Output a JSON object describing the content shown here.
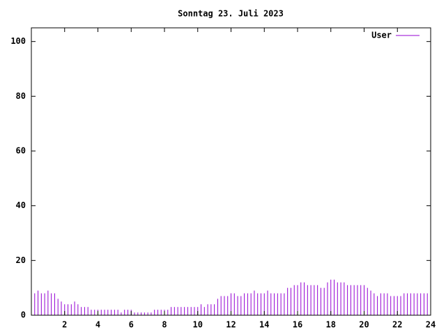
{
  "chart_data": {
    "type": "impulse",
    "title": "Sonntag 23. Juli 2023",
    "series": [
      {
        "name": "User",
        "color": "#9400d3",
        "x": [
          0,
          0.2,
          0.4,
          0.6,
          0.8,
          1,
          1.2,
          1.4,
          1.6,
          1.8,
          2,
          2.2,
          2.4,
          2.6,
          2.8,
          3,
          3.2,
          3.4,
          3.6,
          3.8,
          4,
          4.2,
          4.4,
          4.6,
          4.8,
          5,
          5.2,
          5.4,
          5.6,
          5.8,
          6,
          6.2,
          6.4,
          6.6,
          6.8,
          7,
          7.2,
          7.4,
          7.6,
          7.8,
          8,
          8.2,
          8.4,
          8.6,
          8.8,
          9,
          9.2,
          9.4,
          9.6,
          9.8,
          10,
          10.2,
          10.4,
          10.6,
          10.8,
          11,
          11.2,
          11.4,
          11.6,
          11.8,
          12,
          12.2,
          12.4,
          12.6,
          12.8,
          13,
          13.2,
          13.4,
          13.6,
          13.8,
          14,
          14.2,
          14.4,
          14.6,
          14.8,
          15,
          15.2,
          15.4,
          15.6,
          15.8,
          16,
          16.2,
          16.4,
          16.6,
          16.8,
          17,
          17.2,
          17.4,
          17.6,
          17.8,
          18,
          18.2,
          18.4,
          18.6,
          18.8,
          19,
          19.2,
          19.4,
          19.6,
          19.8,
          20,
          20.2,
          20.4,
          20.6,
          20.8,
          21,
          21.2,
          21.4,
          21.6,
          21.8,
          22,
          22.2,
          22.4,
          22.6,
          22.8,
          23,
          23.2,
          23.4,
          23.6,
          23.8
        ],
        "values": [
          8,
          8,
          9,
          8,
          8,
          9,
          8,
          8,
          6,
          5,
          4,
          4,
          4,
          5,
          4,
          3,
          3,
          3,
          2,
          2,
          2,
          2,
          2,
          2,
          2,
          2,
          2,
          1,
          2,
          2,
          2,
          1,
          1,
          1,
          1,
          1,
          1,
          2,
          2,
          2,
          2,
          2,
          3,
          3,
          3,
          3,
          3,
          3,
          3,
          3,
          3,
          4,
          3,
          4,
          4,
          4,
          6,
          7,
          7,
          7,
          8,
          8,
          7,
          7,
          8,
          8,
          8,
          9,
          8,
          8,
          8,
          9,
          8,
          8,
          8,
          8,
          8,
          10,
          10,
          11,
          11,
          12,
          12,
          11,
          11,
          11,
          11,
          10,
          10,
          12,
          13,
          13,
          12,
          12,
          12,
          11,
          11,
          11,
          11,
          11,
          11,
          10,
          9,
          8,
          7,
          8,
          8,
          8,
          7,
          7,
          7,
          7,
          8,
          8,
          8,
          8,
          8,
          8,
          8,
          8
        ]
      }
    ],
    "xlim": [
      0,
      24
    ],
    "xticks": [
      2,
      4,
      6,
      8,
      10,
      12,
      14,
      16,
      18,
      20,
      22,
      24
    ],
    "ylim": [
      0,
      105
    ],
    "yticks": [
      0,
      20,
      40,
      60,
      80,
      100
    ],
    "legend": "top-right"
  }
}
